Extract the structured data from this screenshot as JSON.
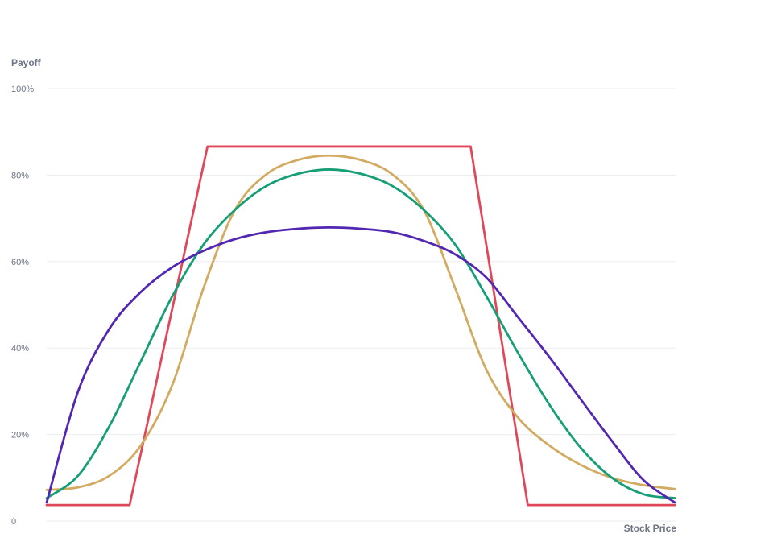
{
  "chart_data": {
    "type": "line",
    "title": "",
    "xlabel": "Stock Price",
    "ylabel": "Payoff",
    "ylim": [
      0,
      100
    ],
    "xlim": [
      0,
      100
    ],
    "grid": true,
    "y_ticks": [
      {
        "value": 0,
        "label": "0"
      },
      {
        "value": 20,
        "label": "20%"
      },
      {
        "value": 40,
        "label": "40%"
      },
      {
        "value": 60,
        "label": "60%"
      },
      {
        "value": 80,
        "label": "80%"
      },
      {
        "value": 100,
        "label": "100%"
      }
    ],
    "series": [
      {
        "color": "#e0485a",
        "x": [
          0,
          13.2,
          25.6,
          67.5,
          76.6,
          100
        ],
        "y": [
          3.7,
          3.7,
          86.6,
          86.6,
          3.7,
          3.7
        ]
      },
      {
        "color": "#d2aa60",
        "x": [
          0,
          5,
          10,
          15,
          20,
          25,
          30,
          35,
          40,
          45,
          50,
          55,
          60,
          65,
          70,
          75,
          80,
          85,
          90,
          95,
          100
        ],
        "y": [
          7.2,
          7.8,
          10.5,
          17.5,
          31.5,
          54,
          72,
          80.2,
          83.5,
          84.5,
          83.5,
          80.2,
          72,
          54,
          35,
          24,
          17.5,
          13,
          10,
          8.3,
          7.4
        ]
      },
      {
        "color": "#169e76",
        "x": [
          0,
          5,
          10,
          15,
          20,
          25,
          30,
          35,
          40,
          45,
          50,
          55,
          60,
          65,
          70,
          75,
          80,
          85,
          90,
          95,
          100
        ],
        "y": [
          5.3,
          10.5,
          22,
          37,
          52,
          64,
          72,
          77.5,
          80.3,
          81.3,
          80.3,
          77.5,
          72,
          64,
          52,
          39,
          27,
          17,
          10,
          6.2,
          5.3
        ]
      },
      {
        "color": "#5227b1",
        "x": [
          0,
          5,
          10,
          15,
          20,
          25,
          30,
          35,
          40,
          45,
          50,
          55,
          60,
          65,
          70,
          75,
          80,
          85,
          90,
          95,
          100
        ],
        "y": [
          4.3,
          30,
          44.5,
          53,
          58.7,
          62.5,
          65.2,
          66.8,
          67.6,
          67.9,
          67.6,
          66.8,
          64.8,
          61.7,
          56.3,
          47.2,
          38,
          28.2,
          18.5,
          9.5,
          4.3
        ]
      }
    ]
  }
}
